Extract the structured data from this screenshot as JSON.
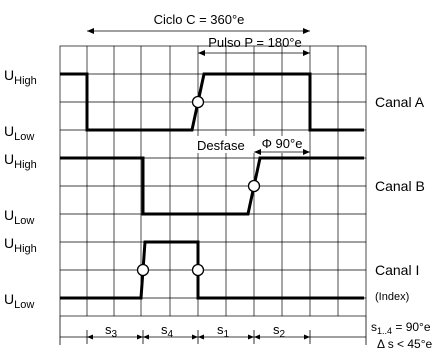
{
  "cycle_label": "Ciclo C = 360°e",
  "pulse_label": "Pulso P = 180°e",
  "phase_label": "Desfase",
  "phase_value": "Φ 90°e",
  "u_high": "U",
  "u_low": "U",
  "high_sub": "High",
  "low_sub": "Low",
  "channels": [
    {
      "name": "Canal A"
    },
    {
      "name": "Canal B"
    },
    {
      "name": "Canal I",
      "note": "(Index)"
    }
  ],
  "segments": [
    {
      "main": "s",
      "sub": "3"
    },
    {
      "main": "s",
      "sub": "4"
    },
    {
      "main": "s",
      "sub": "1"
    },
    {
      "main": "s",
      "sub": "2"
    }
  ],
  "legend_line1": {
    "main": "s",
    "sub": "1..4",
    "rest": " = 90°e"
  },
  "legend_line2": "Δ s < 45°e"
}
